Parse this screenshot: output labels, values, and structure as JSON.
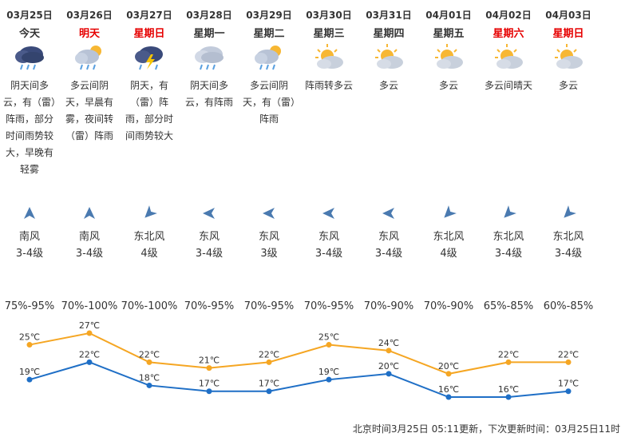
{
  "forecast": [
    {
      "date": "03月25日",
      "day": "今天",
      "weekend": false,
      "icon": "rain-cloud-icon",
      "desc": "阴天间多云，有（雷）阵雨，部分时间雨势较大，早晚有轻雾",
      "wind_dir": "南风",
      "wind_level": "3-4级",
      "wind_angle": 0,
      "humidity": "75%-95%"
    },
    {
      "date": "03月26日",
      "day": "明天",
      "weekend": true,
      "icon": "sun-cloud-rain-icon",
      "desc": "多云间阴天，早晨有雾，夜间转（雷）阵雨",
      "wind_dir": "南风",
      "wind_level": "3-4级",
      "wind_angle": 0,
      "humidity": "70%-100%"
    },
    {
      "date": "03月27日",
      "day": "星期日",
      "weekend": true,
      "icon": "thunder-rain-icon",
      "desc": "阴天，有（雷）阵雨，部分时间雨势较大",
      "wind_dir": "东北风",
      "wind_level": "4级",
      "wind_angle": -135,
      "humidity": "70%-100%"
    },
    {
      "date": "03月28日",
      "day": "星期一",
      "weekend": false,
      "icon": "cloud-rain-icon",
      "desc": "阴天间多云，有阵雨",
      "wind_dir": "东风",
      "wind_level": "3-4级",
      "wind_angle": -90,
      "humidity": "70%-95%"
    },
    {
      "date": "03月29日",
      "day": "星期二",
      "weekend": false,
      "icon": "sun-cloud-rain-icon",
      "desc": "多云间阴天，有（雷）阵雨",
      "wind_dir": "东风",
      "wind_level": "3级",
      "wind_angle": -90,
      "humidity": "70%-95%"
    },
    {
      "date": "03月30日",
      "day": "星期三",
      "weekend": false,
      "icon": "partly-cloudy-icon",
      "desc": "阵雨转多云",
      "wind_dir": "东风",
      "wind_level": "3-4级",
      "wind_angle": -90,
      "humidity": "70%-95%"
    },
    {
      "date": "03月31日",
      "day": "星期四",
      "weekend": false,
      "icon": "partly-cloudy-icon",
      "desc": "多云",
      "wind_dir": "东风",
      "wind_level": "3-4级",
      "wind_angle": -90,
      "humidity": "70%-90%"
    },
    {
      "date": "04月01日",
      "day": "星期五",
      "weekend": false,
      "icon": "partly-cloudy-icon",
      "desc": "多云",
      "wind_dir": "东北风",
      "wind_level": "4级",
      "wind_angle": -135,
      "humidity": "70%-90%"
    },
    {
      "date": "04月02日",
      "day": "星期六",
      "weekend": true,
      "icon": "partly-cloudy-icon",
      "desc": "多云间晴天",
      "wind_dir": "东北风",
      "wind_level": "3-4级",
      "wind_angle": -135,
      "humidity": "65%-85%"
    },
    {
      "date": "04月03日",
      "day": "星期日",
      "weekend": true,
      "icon": "partly-cloudy-icon",
      "desc": "多云",
      "wind_dir": "东北风",
      "wind_level": "3-4级",
      "wind_angle": -135,
      "humidity": "60%-85%"
    }
  ],
  "colors": {
    "high": "#f5a623",
    "low": "#1f6fc6",
    "weekend": "#e60000"
  },
  "chart_data": {
    "type": "line",
    "categories": [
      "03月25日",
      "03月26日",
      "03月27日",
      "03月28日",
      "03月29日",
      "03月30日",
      "03月31日",
      "04月01日",
      "04月02日",
      "04月03日"
    ],
    "unit": "℃",
    "series": [
      {
        "name": "",
        "values": [
          25,
          27,
          22,
          21,
          22,
          25,
          24,
          20,
          22,
          22
        ]
      },
      {
        "name": "",
        "values": [
          19,
          22,
          18,
          17,
          17,
          19,
          20,
          16,
          16,
          17
        ]
      }
    ],
    "ylim": [
      16,
      27
    ],
    "grid": false
  },
  "footer": {
    "text": "北京时间3月25日 05:11更新，下次更新时间：03月25日11时"
  }
}
